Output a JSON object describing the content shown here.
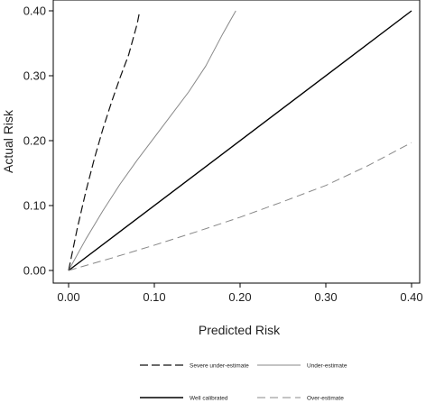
{
  "chart_data": {
    "type": "line",
    "xlabel": "Predicted Risk",
    "ylabel": "Actual Risk",
    "xlim": [
      0,
      0.4
    ],
    "ylim": [
      0,
      0.4
    ],
    "x_ticks": [
      "0.00",
      "0.10",
      "0.20",
      "0.30",
      "0.40"
    ],
    "y_ticks": [
      "0.00",
      "0.10",
      "0.20",
      "0.30",
      "0.40"
    ],
    "grid": false,
    "legend_position": "bottom",
    "series": [
      {
        "name": "Severe under-estimate",
        "style": "long-dash",
        "color": "#111111",
        "x": [
          0,
          0.01,
          0.02,
          0.03,
          0.04,
          0.05,
          0.06,
          0.07,
          0.08,
          0.083
        ],
        "y": [
          0,
          0.064,
          0.121,
          0.172,
          0.218,
          0.259,
          0.297,
          0.332,
          0.38,
          0.4
        ]
      },
      {
        "name": "Under-estimate",
        "style": "solid-thin",
        "color": "#888888",
        "x": [
          0,
          0.02,
          0.04,
          0.06,
          0.08,
          0.1,
          0.12,
          0.14,
          0.16,
          0.18,
          0.195
        ],
        "y": [
          0,
          0.048,
          0.092,
          0.133,
          0.17,
          0.205,
          0.24,
          0.275,
          0.315,
          0.365,
          0.4
        ]
      },
      {
        "name": "Well calibrated",
        "style": "solid",
        "color": "#000000",
        "x": [
          0,
          0.4
        ],
        "y": [
          0,
          0.4
        ]
      },
      {
        "name": "Over-estimate",
        "style": "dash-gray",
        "color": "#888888",
        "x": [
          0,
          0.05,
          0.1,
          0.15,
          0.2,
          0.25,
          0.3,
          0.35,
          0.4
        ],
        "y": [
          0,
          0.019,
          0.039,
          0.06,
          0.082,
          0.106,
          0.131,
          0.162,
          0.197
        ]
      }
    ]
  }
}
